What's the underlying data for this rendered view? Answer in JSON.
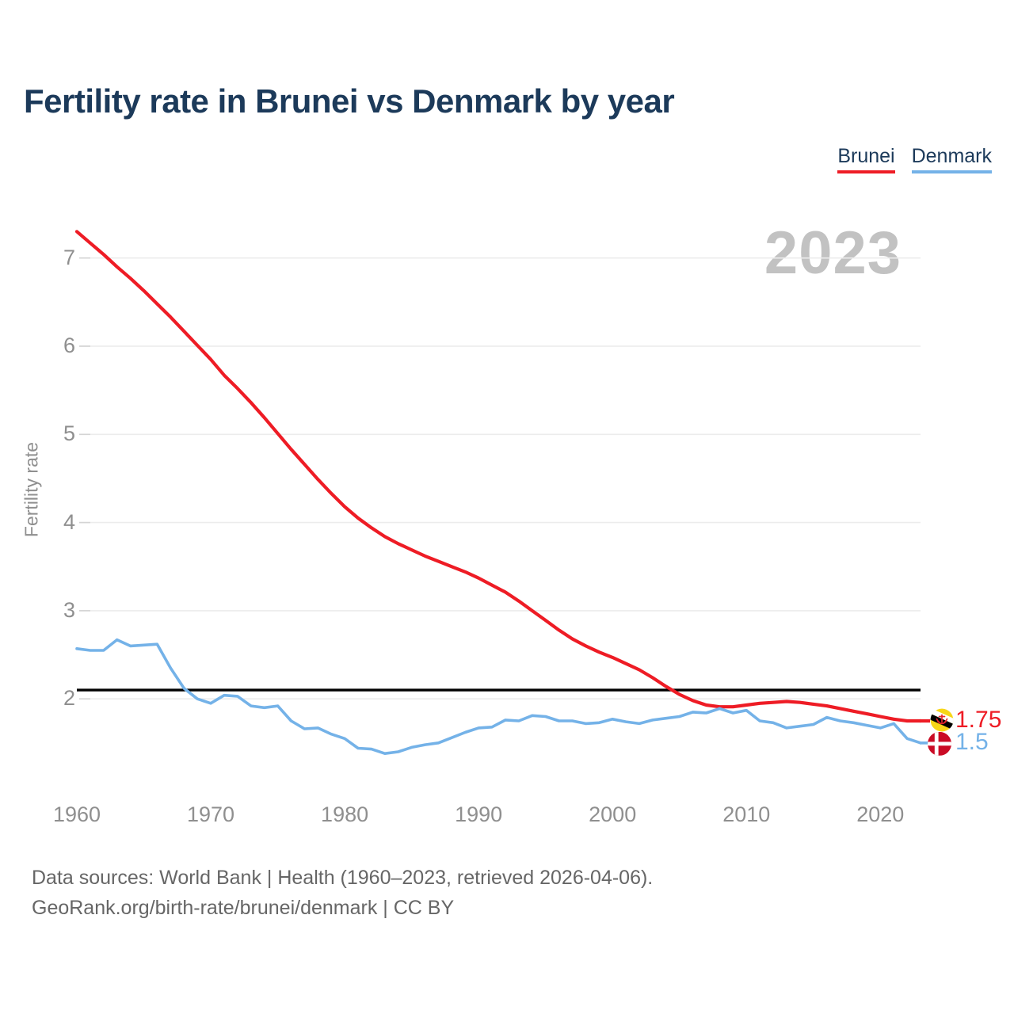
{
  "title": "Fertility rate in Brunei vs Denmark by year",
  "watermark_year": "2023",
  "legend": {
    "brunei": {
      "label": "Brunei",
      "color": "#ee1c25"
    },
    "denmark": {
      "label": "Denmark",
      "color": "#74b2e8"
    }
  },
  "footer": {
    "line1": "Data sources: World Bank | Health (1960–2023, retrieved 2026-04-06).",
    "line2": "GeoRank.org/birth-rate/brunei/denmark | CC BY"
  },
  "chart_data": {
    "type": "line",
    "title": "Fertility rate in Brunei vs Denmark by year",
    "xlabel": "",
    "ylabel": "Fertility rate",
    "xlim": [
      1960,
      2023
    ],
    "ylim": [
      1.3,
      7.4
    ],
    "x_ticks": [
      1960,
      1970,
      1980,
      1990,
      2000,
      2010,
      2020
    ],
    "y_ticks": [
      2,
      3,
      4,
      5,
      6,
      7
    ],
    "grid": true,
    "legend_position": "top-right",
    "reference_line": {
      "value": 2.1,
      "color": "#000000"
    },
    "x": [
      1960,
      1961,
      1962,
      1963,
      1964,
      1965,
      1966,
      1967,
      1968,
      1969,
      1970,
      1971,
      1972,
      1973,
      1974,
      1975,
      1976,
      1977,
      1978,
      1979,
      1980,
      1981,
      1982,
      1983,
      1984,
      1985,
      1986,
      1987,
      1988,
      1989,
      1990,
      1991,
      1992,
      1993,
      1994,
      1995,
      1996,
      1997,
      1998,
      1999,
      2000,
      2001,
      2002,
      2003,
      2004,
      2005,
      2006,
      2007,
      2008,
      2009,
      2010,
      2011,
      2012,
      2013,
      2014,
      2015,
      2016,
      2017,
      2018,
      2019,
      2020,
      2021,
      2022,
      2023
    ],
    "series": [
      {
        "name": "Brunei",
        "color": "#ee1c25",
        "stroke_width": 4.2,
        "end_label": "1.75",
        "values": [
          7.3,
          7.17,
          7.04,
          6.9,
          6.77,
          6.63,
          6.48,
          6.33,
          6.17,
          6.01,
          5.85,
          5.67,
          5.52,
          5.36,
          5.19,
          5.01,
          4.83,
          4.66,
          4.49,
          4.33,
          4.18,
          4.05,
          3.94,
          3.84,
          3.76,
          3.69,
          3.62,
          3.56,
          3.5,
          3.44,
          3.37,
          3.29,
          3.21,
          3.11,
          3.0,
          2.89,
          2.78,
          2.68,
          2.6,
          2.53,
          2.47,
          2.4,
          2.33,
          2.24,
          2.14,
          2.05,
          1.98,
          1.93,
          1.91,
          1.91,
          1.93,
          1.95,
          1.96,
          1.97,
          1.96,
          1.94,
          1.92,
          1.89,
          1.86,
          1.83,
          1.8,
          1.77,
          1.75,
          1.75
        ]
      },
      {
        "name": "Denmark",
        "color": "#74b2e8",
        "stroke_width": 3.6,
        "end_label": "1.5",
        "values": [
          2.57,
          2.55,
          2.55,
          2.67,
          2.6,
          2.61,
          2.62,
          2.35,
          2.12,
          2.0,
          1.95,
          2.04,
          2.03,
          1.92,
          1.9,
          1.92,
          1.75,
          1.66,
          1.67,
          1.6,
          1.55,
          1.44,
          1.43,
          1.38,
          1.4,
          1.45,
          1.48,
          1.5,
          1.56,
          1.62,
          1.67,
          1.68,
          1.76,
          1.75,
          1.81,
          1.8,
          1.75,
          1.75,
          1.72,
          1.73,
          1.77,
          1.74,
          1.72,
          1.76,
          1.78,
          1.8,
          1.85,
          1.84,
          1.89,
          1.84,
          1.87,
          1.75,
          1.73,
          1.67,
          1.69,
          1.71,
          1.79,
          1.75,
          1.73,
          1.7,
          1.67,
          1.72,
          1.55,
          1.5
        ]
      }
    ]
  }
}
